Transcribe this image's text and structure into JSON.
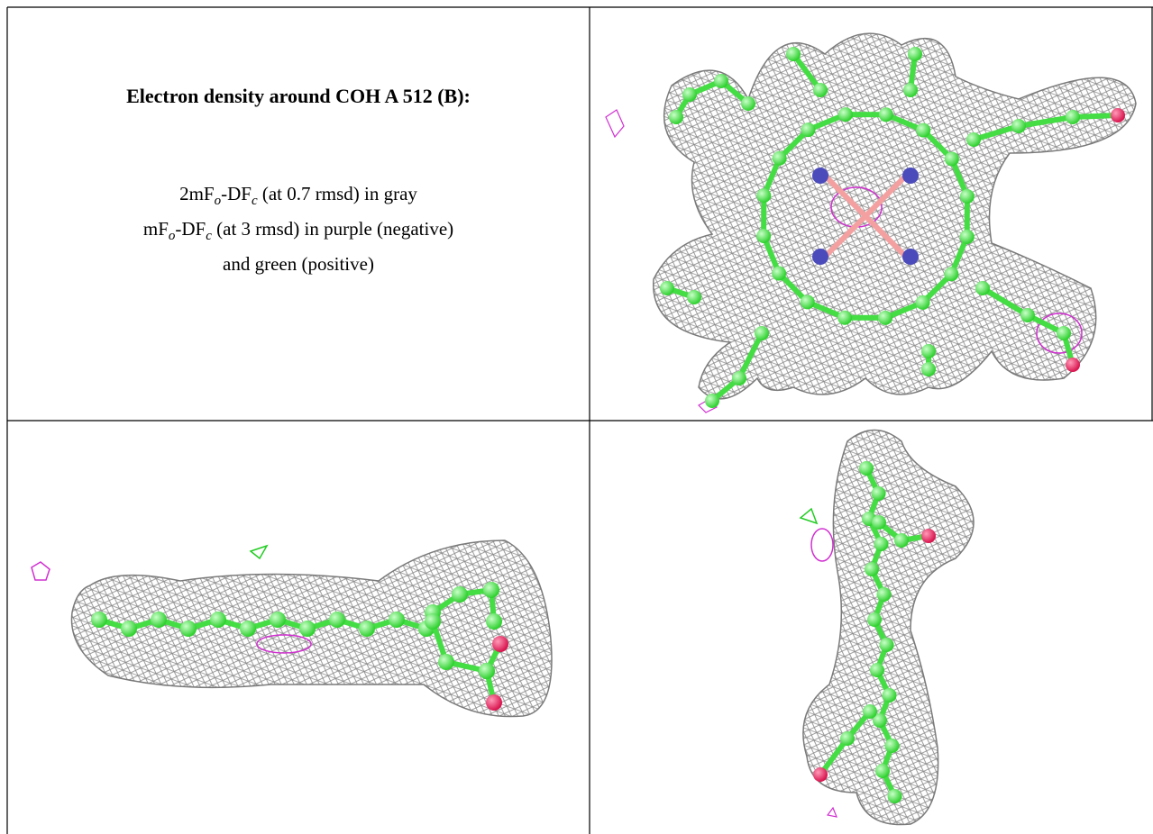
{
  "title": "Electron density around COH A 512 (B):",
  "legend": {
    "lines": [
      [
        {
          "text": "2mF"
        },
        {
          "sub": "o"
        },
        {
          "text": "-DF"
        },
        {
          "sub": "c"
        },
        {
          "text": " (at 0.7 rmsd) in gray"
        }
      ],
      [
        {
          "text": "mF"
        },
        {
          "sub": "o"
        },
        {
          "text": "-DF"
        },
        {
          "sub": "c"
        },
        {
          "text": " (at 3 rmsd) in purple (negative)"
        }
      ],
      [
        {
          "text": "and green (positive)"
        }
      ]
    ]
  }
}
